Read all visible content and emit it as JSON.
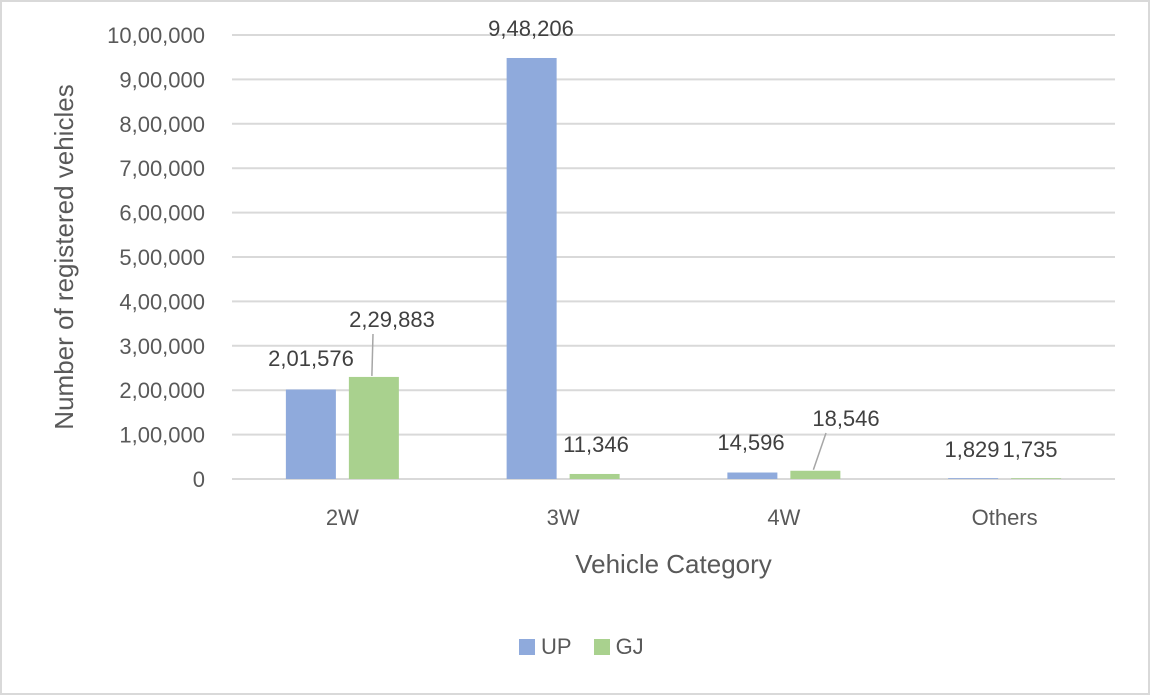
{
  "chart_data": {
    "type": "bar",
    "title": "",
    "xlabel": "Vehicle Category",
    "ylabel": "Number of registered vehicles",
    "categories": [
      "2W",
      "3W",
      "4W",
      "Others"
    ],
    "series": [
      {
        "name": "UP",
        "color": "#8faadc",
        "values": [
          201576,
          948206,
          14596,
          1829
        ],
        "labels": [
          "2,01,576",
          "9,48,206",
          "14,596",
          "1,829"
        ]
      },
      {
        "name": "GJ",
        "color": "#a9d18e",
        "values": [
          229883,
          11346,
          18546,
          1735
        ],
        "labels": [
          "2,29,883",
          "11,346",
          "18,546",
          "1,735"
        ]
      }
    ],
    "ylim": [
      0,
      1000000
    ],
    "yticks": [
      0,
      100000,
      200000,
      300000,
      400000,
      500000,
      600000,
      700000,
      800000,
      900000,
      1000000
    ],
    "ytick_labels": [
      "0",
      "1,00,000",
      "2,00,000",
      "3,00,000",
      "4,00,000",
      "5,00,000",
      "6,00,000",
      "7,00,000",
      "8,00,000",
      "9,00,000",
      "10,00,000"
    ],
    "grid": true,
    "legend_position": "bottom"
  },
  "legend": [
    {
      "label": "UP",
      "color": "#8faadc"
    },
    {
      "label": "GJ",
      "color": "#a9d18e"
    }
  ]
}
